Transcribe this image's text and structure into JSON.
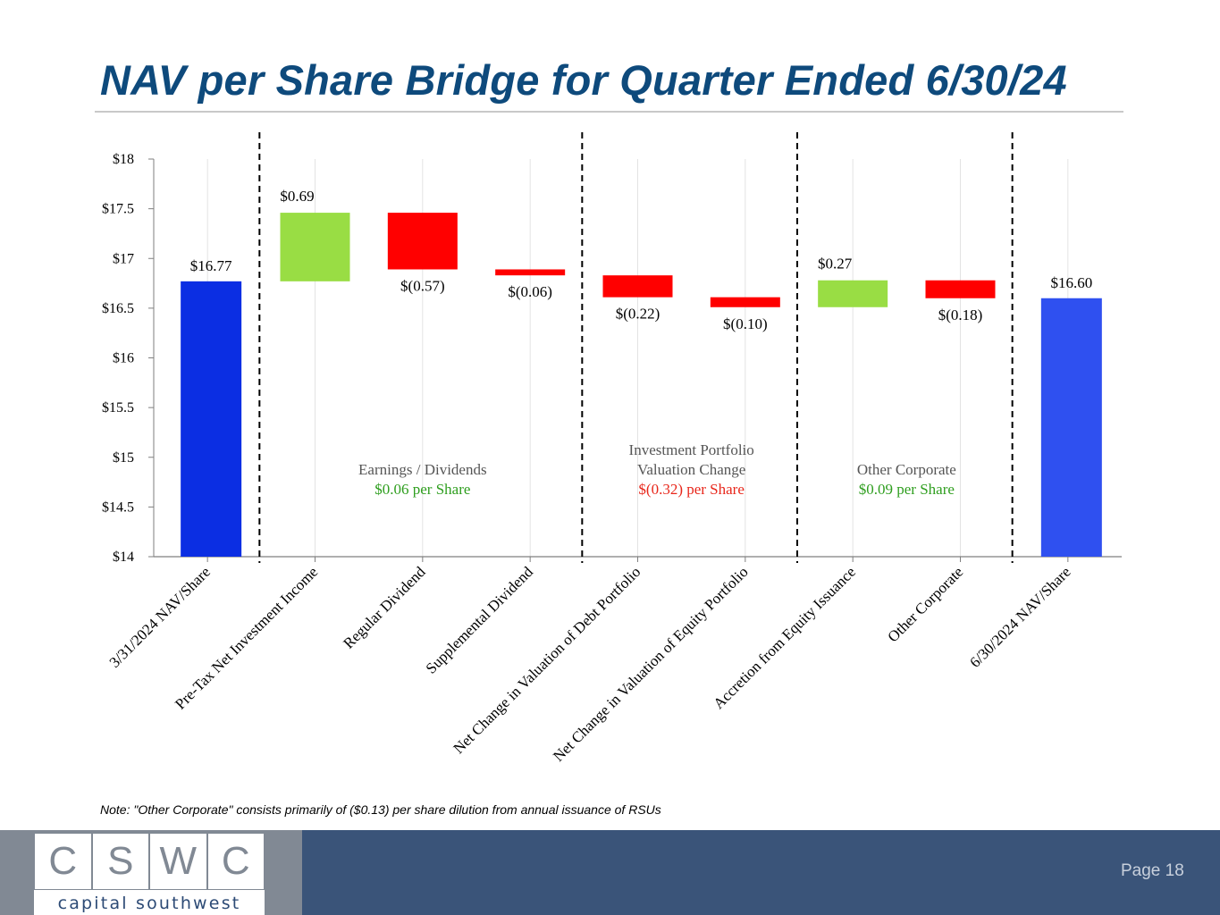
{
  "page": {
    "title": "NAV per Share Bridge for Quarter Ended 6/30/24",
    "note": "Note: \"Other Corporate\" consists primarily of ($0.13) per share dilution from annual issuance of RSUs",
    "page_label": "Page 18"
  },
  "logo": {
    "letters": [
      "C",
      "S",
      "W",
      "C"
    ],
    "company": "capital southwest"
  },
  "colors": {
    "title": "#0e4a7c",
    "start_bar": "#0b2ee3",
    "end_bar": "#2f50f0",
    "increase": "#99dd44",
    "decrease": "#ff0000",
    "positive_text": "#2e9e1e",
    "negative_text": "#e8261a",
    "group_label": "#555555",
    "gridline": "#e3e3e3"
  },
  "chart_data": {
    "type": "waterfall",
    "title": "NAV per Share Bridge for Quarter Ended 6/30/24",
    "ylim": [
      14,
      18
    ],
    "yticks": [
      14,
      14.5,
      15,
      15.5,
      16,
      16.5,
      17,
      17.5,
      18
    ],
    "ytick_labels": [
      "$14",
      "$14.5",
      "$15",
      "$15.5",
      "$16",
      "$16.5",
      "$17",
      "$17.5",
      "$18"
    ],
    "categories": [
      "3/31/2024 NAV/Share",
      "Pre-Tax Net Investment Income",
      "Regular Dividend",
      "Supplemental Dividend",
      "Net Change in Valuation of Debt Portfolio",
      "Net Change in Valuation of Equity Portfolio",
      "Accretion from Equity Issuance",
      "Other Corporate",
      "6/30/2024 NAV/Share"
    ],
    "steps": [
      {
        "kind": "total",
        "value": 16.77,
        "label": "$16.77"
      },
      {
        "kind": "change",
        "value": 0.69,
        "label": "$0.69"
      },
      {
        "kind": "change",
        "value": -0.57,
        "label": "$(0.57)"
      },
      {
        "kind": "change",
        "value": -0.06,
        "label": "$(0.06)"
      },
      {
        "kind": "change",
        "value": -0.22,
        "label": "$(0.22)"
      },
      {
        "kind": "change",
        "value": -0.1,
        "label": "$(0.10)"
      },
      {
        "kind": "change",
        "value": 0.27,
        "label": "$0.27"
      },
      {
        "kind": "change",
        "value": -0.18,
        "label": "$(0.18)"
      },
      {
        "kind": "total",
        "value": 16.6,
        "label": "$16.60"
      }
    ],
    "groups": [
      {
        "title_lines": [
          "Earnings / Dividends"
        ],
        "value_label": "$0.06 per Share",
        "sign": "positive",
        "category_range": [
          1,
          3
        ]
      },
      {
        "title_lines": [
          "Investment Portfolio",
          "Valuation Change"
        ],
        "value_label": "$(0.32) per Share",
        "sign": "negative",
        "category_range": [
          4,
          5
        ]
      },
      {
        "title_lines": [
          "Other Corporate"
        ],
        "value_label": "$0.09 per Share",
        "sign": "positive",
        "category_range": [
          6,
          7
        ]
      }
    ],
    "grid": true
  }
}
